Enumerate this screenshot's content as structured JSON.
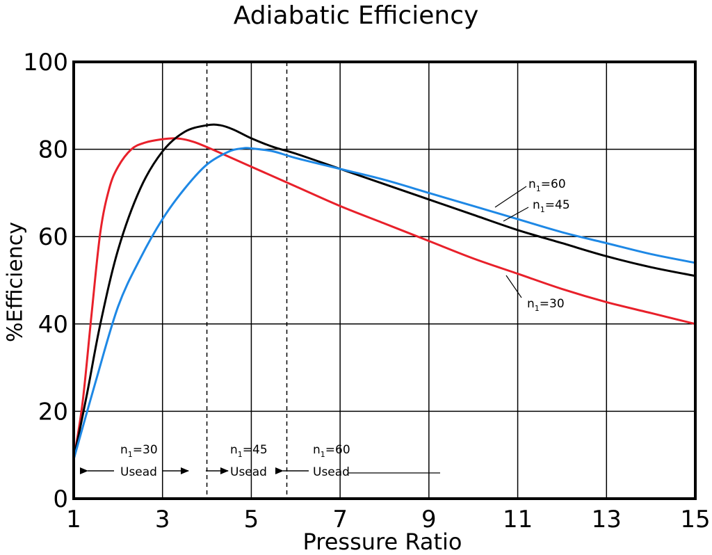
{
  "chart_data": {
    "type": "line",
    "title": "Adiabatic Efficiency",
    "xlabel": "Pressure Ratio",
    "ylabel": "%Efficiency",
    "xlim": [
      1,
      15
    ],
    "ylim": [
      0,
      100
    ],
    "xticks": [
      1,
      3,
      5,
      7,
      9,
      11,
      13,
      15
    ],
    "yticks": [
      0,
      20,
      40,
      60,
      80,
      100
    ],
    "grid": true,
    "series": [
      {
        "name": "n1=30",
        "color": "#e8202a",
        "x": [
          1,
          1.2,
          1.4,
          1.6,
          1.8,
          2.0,
          2.3,
          2.6,
          3.0,
          3.3,
          3.6,
          4.0,
          5.0,
          6.0,
          7.0,
          8.0,
          9.0,
          10.0,
          11.0,
          12.0,
          13.0,
          14.0,
          15.0
        ],
        "y": [
          9,
          22,
          42,
          61,
          71,
          76,
          80,
          81.5,
          82.3,
          82.5,
          82,
          80.5,
          76,
          71.5,
          67,
          63,
          59,
          55,
          51.5,
          48,
          45,
          42.5,
          40
        ]
      },
      {
        "name": "n1=45",
        "color": "#000000",
        "x": [
          1,
          1.3,
          1.6,
          2.0,
          2.5,
          3.0,
          3.5,
          4.0,
          4.3,
          4.6,
          5.0,
          5.5,
          6.0,
          7.0,
          8.0,
          9.0,
          10.0,
          11.0,
          12.0,
          13.0,
          14.0,
          15.0
        ],
        "y": [
          9,
          24,
          40,
          57,
          71,
          79.5,
          84,
          85.5,
          85.5,
          84.5,
          82.5,
          80.5,
          79,
          75.5,
          72,
          68.5,
          65,
          61.5,
          58.5,
          55.5,
          53,
          51
        ]
      },
      {
        "name": "n1=60",
        "color": "#1e88e5",
        "x": [
          1,
          1.5,
          2.0,
          2.5,
          3.0,
          3.5,
          4.0,
          4.5,
          4.8,
          5.0,
          5.5,
          6.0,
          7.0,
          8.0,
          9.0,
          10.0,
          11.0,
          12.0,
          13.0,
          14.0,
          15.0
        ],
        "y": [
          9,
          27,
          44,
          55,
          64,
          71,
          76.5,
          79.5,
          80.2,
          80.2,
          79.5,
          78,
          75.5,
          73,
          70,
          67,
          64,
          61,
          58.5,
          56,
          54
        ]
      }
    ],
    "vlines": [
      4.0,
      5.8
    ],
    "curve_labels": [
      {
        "n": "n",
        "sub": "1",
        "rest": "=60"
      },
      {
        "n": "n",
        "sub": "1",
        "rest": "=45"
      },
      {
        "n": "n",
        "sub": "1",
        "rest": "=30"
      }
    ],
    "ranges": [
      {
        "n": "n",
        "sub": "1",
        "rest": "=30",
        "label": "Usead"
      },
      {
        "n": "n",
        "sub": "1",
        "rest": "=45",
        "label": "Usead"
      },
      {
        "n": "n",
        "sub": "1",
        "rest": "=60",
        "label": "Usead"
      }
    ]
  }
}
